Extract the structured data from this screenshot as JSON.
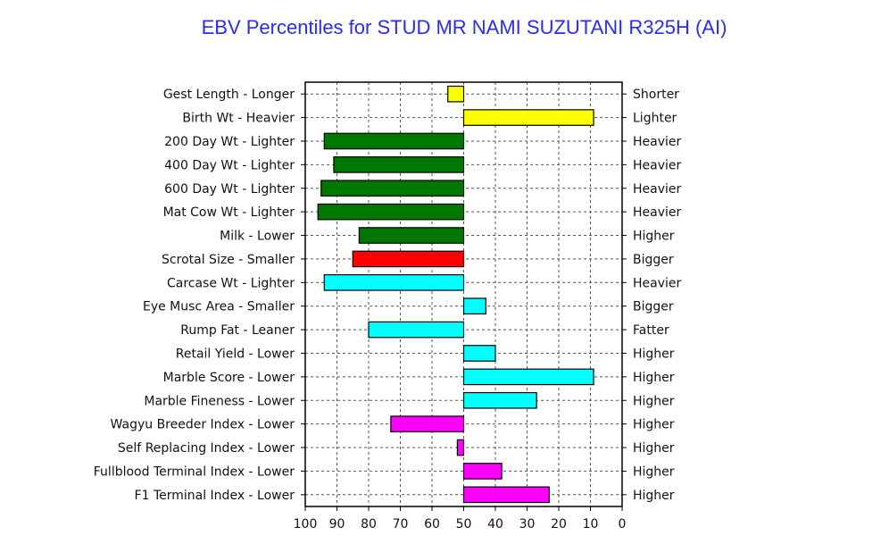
{
  "chart_data": {
    "type": "bar",
    "title": "EBV Percentiles for STUD MR NAMI SUZUTANI R325H (AI)",
    "xlim": [
      100,
      0
    ],
    "baseline": 50,
    "x_ticks": [
      100,
      90,
      80,
      70,
      60,
      50,
      40,
      30,
      20,
      10,
      0
    ],
    "grid": true,
    "categories": [
      "Gest Length - Longer",
      "Birth Wt - Heavier",
      "200 Day Wt - Lighter",
      "400 Day Wt - Lighter",
      "600 Day Wt - Lighter",
      "Mat Cow Wt - Lighter",
      "Milk - Lower",
      "Scrotal Size - Smaller",
      "Carcase Wt - Lighter",
      "Eye Musc Area - Smaller",
      "Rump Fat - Leaner",
      "Retail Yield - Lower",
      "Marble Score - Lower",
      "Marble Fineness - Lower",
      "Wagyu Breeder Index - Lower",
      "Self Replacing Index - Lower",
      "Fullblood Terminal Index - Lower",
      "F1 Terminal Index - Lower"
    ],
    "right_labels": [
      "Shorter",
      "Lighter",
      "Heavier",
      "Heavier",
      "Heavier",
      "Heavier",
      "Higher",
      "Bigger",
      "Heavier",
      "Bigger",
      "Fatter",
      "Higher",
      "Higher",
      "Higher",
      "Higher",
      "Higher",
      "Higher",
      "Higher"
    ],
    "values": [
      55,
      9,
      94,
      91,
      95,
      96,
      83,
      85,
      94,
      43,
      80,
      40,
      9,
      27,
      73,
      52,
      38,
      23
    ],
    "colors": [
      "#ffff00",
      "#ffff00",
      "#007700",
      "#007700",
      "#007700",
      "#007700",
      "#007700",
      "#ff0000",
      "#00ffff",
      "#00ffff",
      "#00ffff",
      "#00ffff",
      "#00ffff",
      "#00ffff",
      "#ff00ff",
      "#ff00ff",
      "#ff00ff",
      "#ff00ff"
    ]
  }
}
